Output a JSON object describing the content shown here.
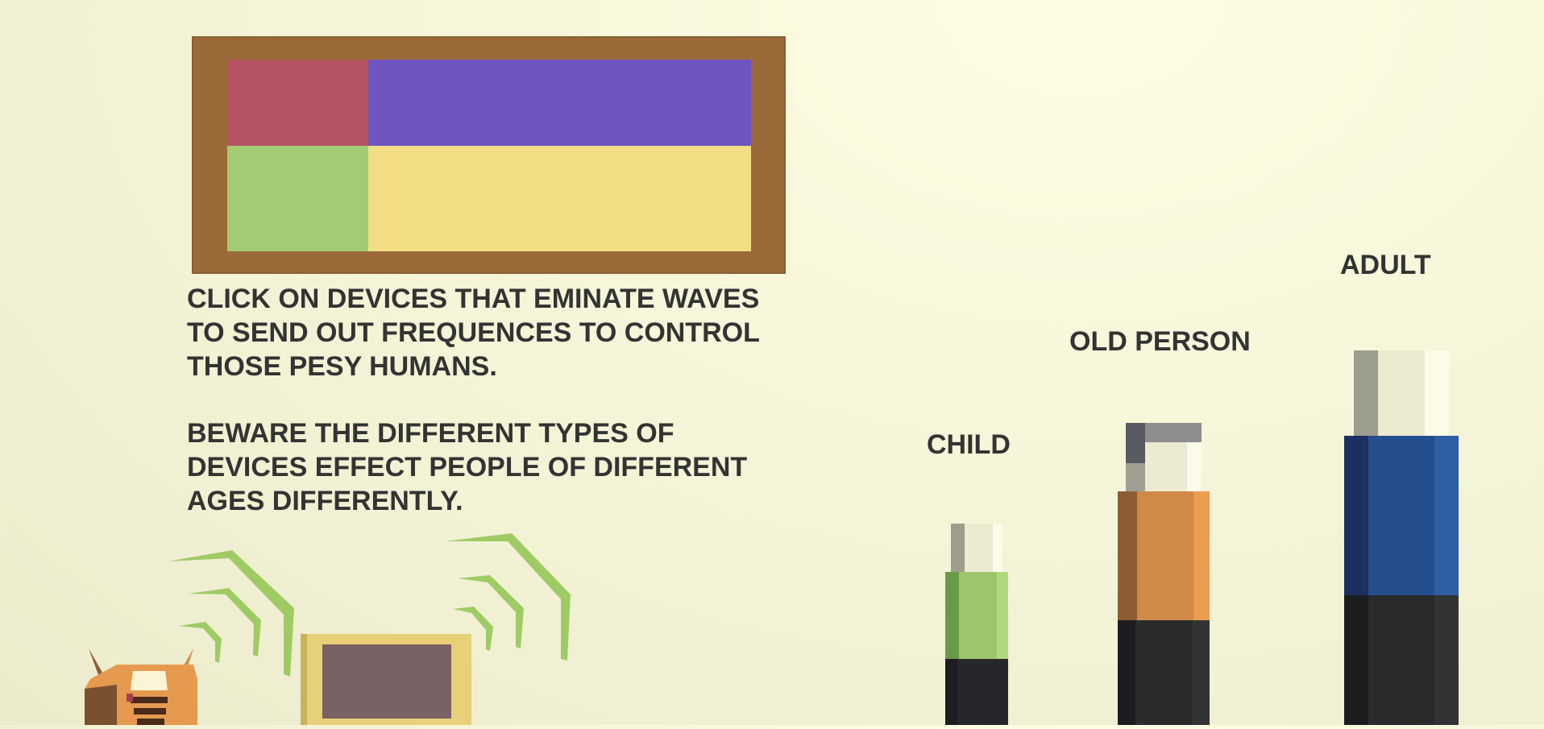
{
  "instructions": {
    "line1": "CLICK ON DEVICES THAT EMINATE WAVES TO SEND OUT FREQUENCES TO CONTROL THOSE PESY HUMANS.",
    "line2": "BEWARE THE DIFFERENT TYPES OF DEVICES EFFECT PEOPLE OF DIFFERENT AGES DIFFERENTLY."
  },
  "characters": {
    "child": "CHILD",
    "old_person": "OLD PERSON",
    "adult": "ADULT"
  },
  "colors": {
    "frame": "#9b6a39",
    "panel_red": "#b45462",
    "panel_purple": "#6f55bf",
    "panel_green": "#a2cb73",
    "panel_yellow": "#f2dd85",
    "text": "#333333",
    "wave": "#9fcb64"
  },
  "icons": {
    "radio": "radio-device-icon",
    "tv": "tv-device-icon",
    "waves": "signal-wave-icon"
  }
}
